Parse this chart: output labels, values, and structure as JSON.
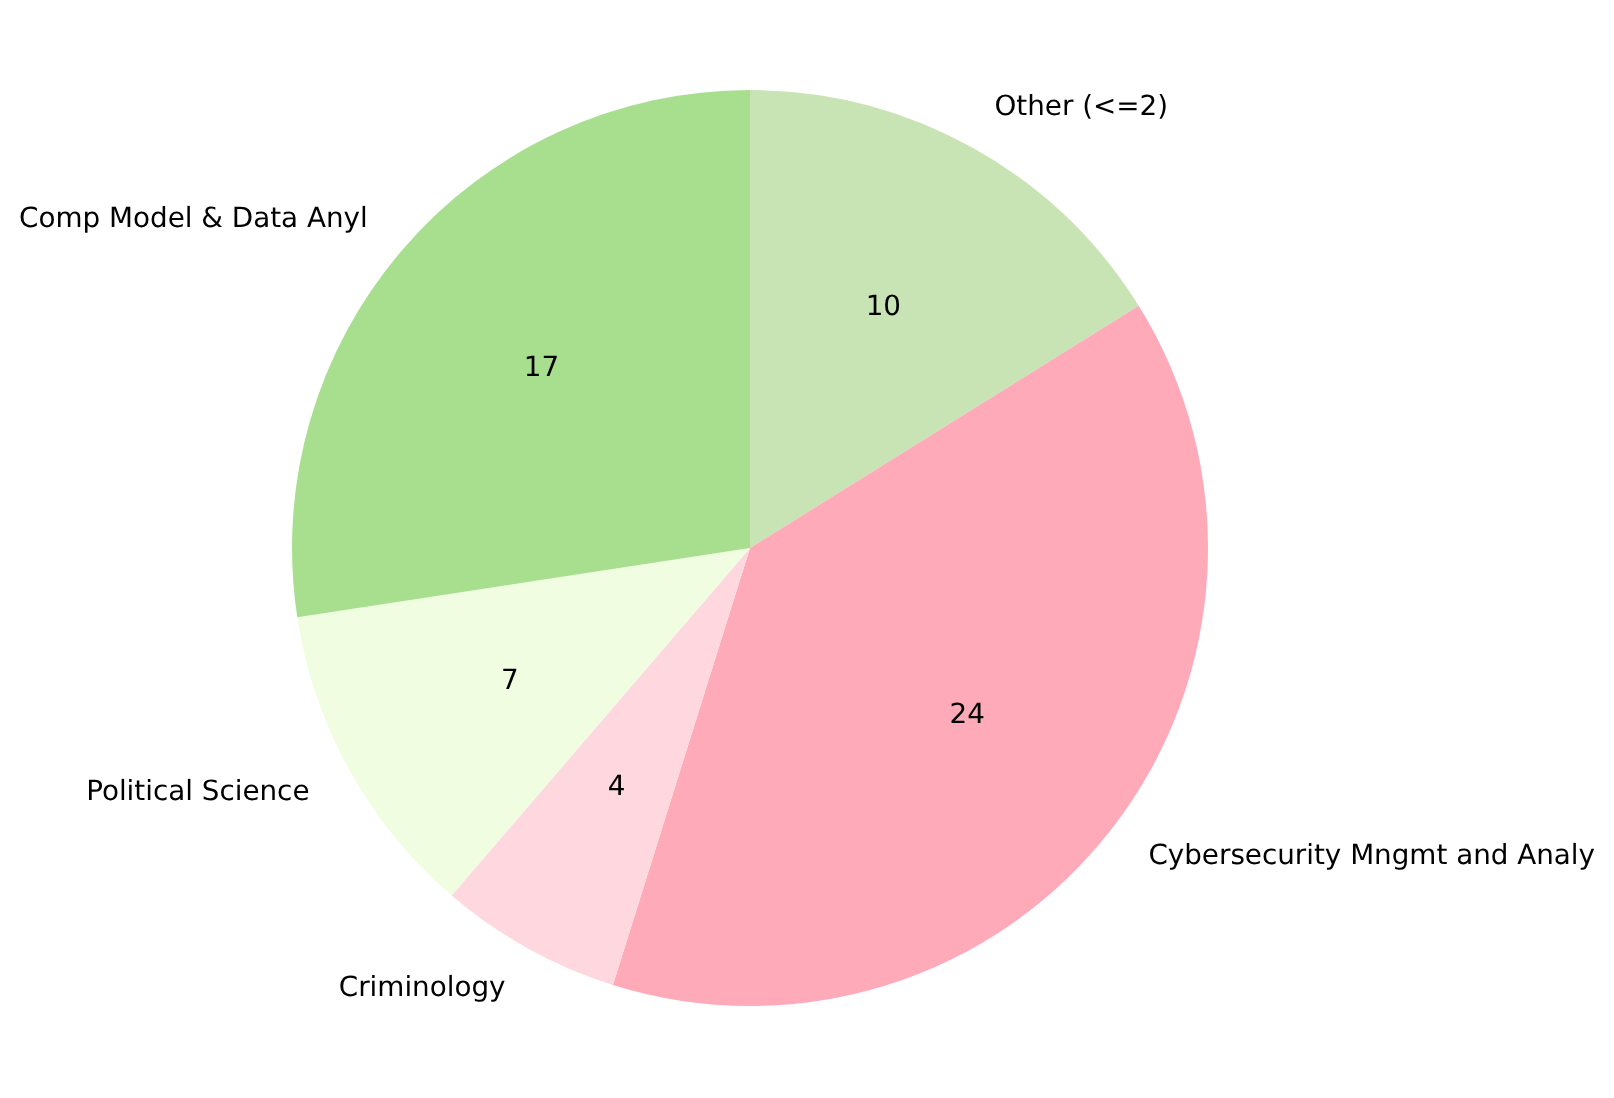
{
  "chart_data": {
    "type": "pie",
    "categories": [
      "Other (<=2)",
      "Cybersecurity Mngmt and Analy",
      "Criminology",
      "Political Science",
      "Comp Model & Data Anyl"
    ],
    "values": [
      10,
      24,
      4,
      7,
      17
    ],
    "colors": [
      "#c9e4b4",
      "#ffaab8",
      "#ffd8df",
      "#f0fde0",
      "#a8df8e"
    ],
    "data_labels": true
  }
}
